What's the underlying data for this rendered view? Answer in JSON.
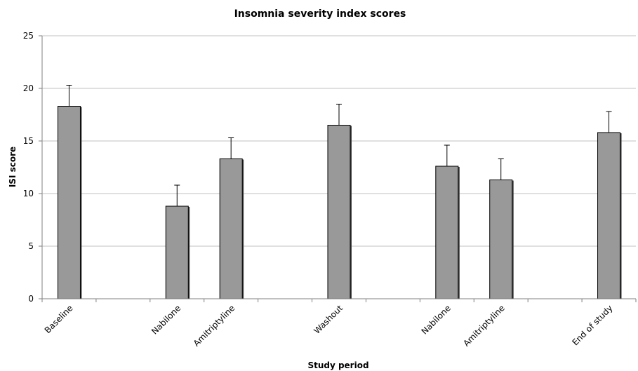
{
  "chart_data": {
    "type": "bar",
    "title": "Insomnia severity index scores",
    "xlabel": "Study period",
    "ylabel": "ISI score",
    "ylim": [
      0,
      25
    ],
    "yticks": [
      0,
      5,
      10,
      15,
      20,
      25
    ],
    "grid": true,
    "categories": [
      "Baseline",
      "",
      "Nabilone",
      "Amitriptyline",
      "",
      "Washout",
      "",
      "Nabilone",
      "Amitriptyline",
      "",
      "End of study"
    ],
    "values": [
      18.3,
      null,
      8.8,
      13.3,
      null,
      16.5,
      null,
      12.6,
      11.3,
      null,
      15.8
    ],
    "error_upper": [
      2.0,
      null,
      2.0,
      2.0,
      null,
      2.0,
      null,
      2.0,
      2.0,
      null,
      2.0
    ],
    "colors": {
      "bar": "#999999",
      "bar_shadow": "#444444",
      "grid": "#c0c0c0",
      "axis": "#808080"
    }
  }
}
